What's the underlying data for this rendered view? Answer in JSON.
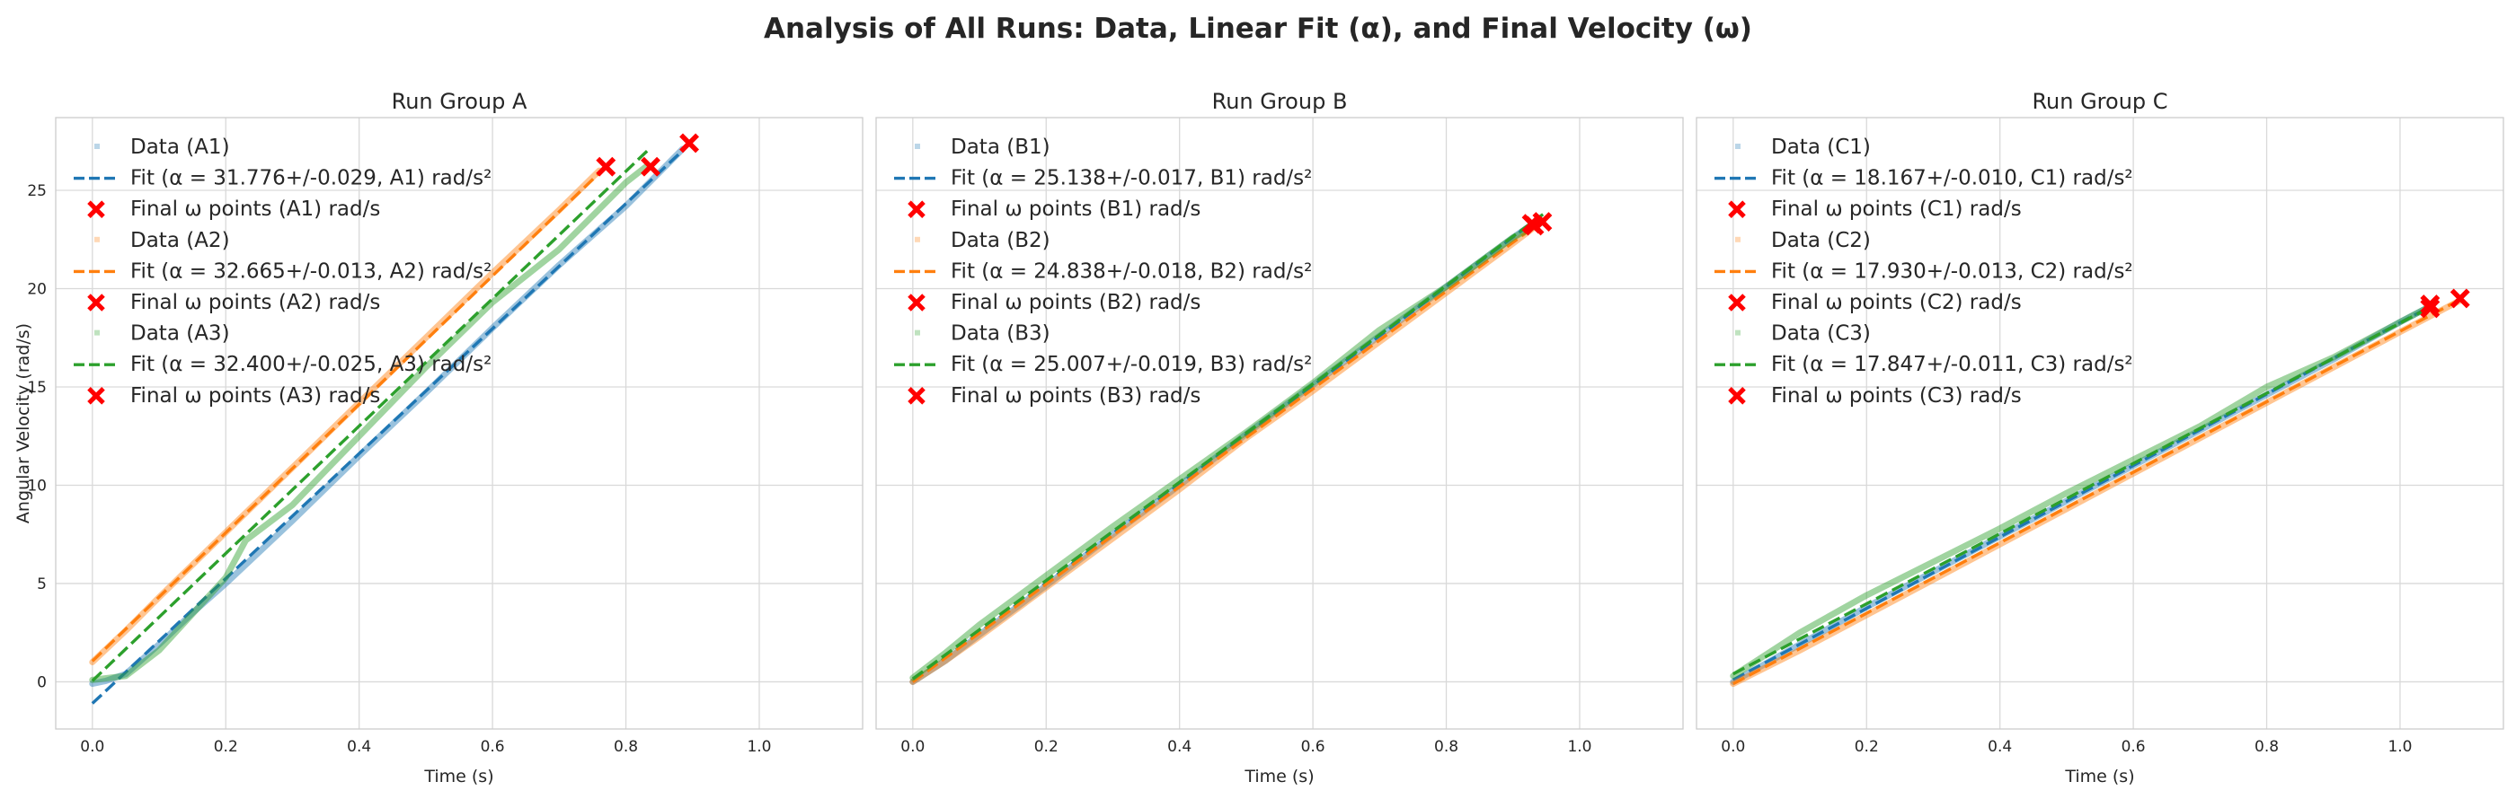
{
  "figure_title": "Analysis of All Runs: Data, Linear Fit (α), and Final Velocity (ω)",
  "colors": {
    "blue": "#1f77b4",
    "orange": "#ff7f0e",
    "green": "#2ca02c",
    "marker": "#ff0000",
    "grid": "#d9d9d9",
    "frame": "#cccccc"
  },
  "chart_data": [
    {
      "type": "line",
      "title": "Run Group A",
      "xlabel": "Time (s)",
      "ylabel": "Angular Velocity (rad/s)",
      "xlim": [
        -0.055,
        1.155
      ],
      "ylim": [
        -2.4,
        28.7
      ],
      "xticks": [
        "0.0",
        "0.2",
        "0.4",
        "0.6",
        "0.8",
        "1.0"
      ],
      "yticks": [
        "0",
        "5",
        "10",
        "15",
        "20",
        "25"
      ],
      "grid": true,
      "legend_position": "top-left",
      "series": [
        {
          "run": "A1",
          "color": "#1f77b4",
          "data_label": "Data (A1)",
          "fit_label": "Fit (α = 31.776+/-0.029, A1) rad/s²",
          "final_label": "Final ω points (A1) rad/s",
          "data_x": [
            0.0,
            0.02,
            0.05,
            0.1,
            0.15,
            0.2,
            0.3,
            0.4,
            0.5,
            0.6,
            0.7,
            0.8,
            0.85,
            0.885
          ],
          "data_y": [
            -0.1,
            0.05,
            0.4,
            1.9,
            3.5,
            5.0,
            8.2,
            11.5,
            14.7,
            18.0,
            21.2,
            24.2,
            25.9,
            27.1
          ],
          "fit": {
            "slope": 31.776,
            "intercept": -1.1,
            "x_range": [
              0.0,
              0.885
            ]
          },
          "final": [
            [
              0.895,
              27.4
            ]
          ]
        },
        {
          "run": "A2",
          "color": "#ff7f0e",
          "data_label": "Data (A2)",
          "fit_label": "Fit (α = 32.665+/-0.013, A2) rad/s²",
          "final_label": "Final ω points (A2) rad/s",
          "data_x": [
            0.0,
            0.05,
            0.1,
            0.2,
            0.3,
            0.4,
            0.5,
            0.6,
            0.7,
            0.76
          ],
          "data_y": [
            1.0,
            2.6,
            4.3,
            7.6,
            10.9,
            14.2,
            17.5,
            20.8,
            24.0,
            26.0
          ],
          "fit": {
            "slope": 32.665,
            "intercept": 1.05,
            "x_range": [
              0.0,
              0.765
            ]
          },
          "final": [
            [
              0.77,
              26.2
            ]
          ]
        },
        {
          "run": "A3",
          "color": "#2ca02c",
          "data_label": "Data (A3)",
          "fit_label": "Fit (α = 32.400+/-0.025, A3) rad/s²",
          "final_label": "Final ω points (A3) rad/s",
          "data_x": [
            0.0,
            0.05,
            0.1,
            0.2,
            0.23,
            0.3,
            0.4,
            0.5,
            0.6,
            0.7,
            0.8,
            0.83
          ],
          "data_y": [
            0.1,
            0.3,
            1.6,
            5.3,
            7.2,
            9.0,
            12.5,
            16.0,
            19.3,
            22.0,
            25.4,
            26.2
          ],
          "fit": {
            "slope": 32.4,
            "intercept": 0.05,
            "x_range": [
              0.0,
              0.835
            ]
          },
          "final": [
            [
              0.837,
              26.2
            ]
          ]
        }
      ]
    },
    {
      "type": "line",
      "title": "Run Group B",
      "xlabel": "Time (s)",
      "ylabel": "",
      "xlim": [
        -0.055,
        1.155
      ],
      "ylim": [
        -2.4,
        28.7
      ],
      "xticks": [
        "0.0",
        "0.2",
        "0.4",
        "0.6",
        "0.8",
        "1.0"
      ],
      "yticks": [],
      "grid": true,
      "legend_position": "top-left",
      "series": [
        {
          "run": "B1",
          "color": "#1f77b4",
          "data_label": "Data (B1)",
          "fit_label": "Fit (α = 25.138+/-0.017, B1) rad/s²",
          "final_label": "Final ω points (B1) rad/s",
          "data_x": [
            0.0,
            0.05,
            0.1,
            0.2,
            0.3,
            0.4,
            0.5,
            0.6,
            0.7,
            0.8,
            0.9,
            0.93
          ],
          "data_y": [
            0.0,
            1.1,
            2.4,
            4.9,
            7.5,
            10.0,
            12.6,
            15.1,
            17.6,
            20.1,
            22.6,
            23.3
          ],
          "fit": {
            "slope": 25.138,
            "intercept": 0.0,
            "x_range": [
              0.0,
              0.93
            ]
          },
          "final": [
            [
              0.928,
              23.3
            ]
          ]
        },
        {
          "run": "B2",
          "color": "#ff7f0e",
          "data_label": "Data (B2)",
          "fit_label": "Fit (α = 24.838+/-0.018, B2) rad/s²",
          "final_label": "Final ω points (B2) rad/s",
          "data_x": [
            0.0,
            0.05,
            0.1,
            0.2,
            0.3,
            0.4,
            0.5,
            0.6,
            0.7,
            0.8,
            0.9,
            0.935
          ],
          "data_y": [
            0.0,
            1.1,
            2.3,
            4.8,
            7.3,
            9.8,
            12.4,
            14.8,
            17.3,
            19.8,
            22.3,
            23.2
          ],
          "fit": {
            "slope": 24.838,
            "intercept": 0.0,
            "x_range": [
              0.0,
              0.935
            ]
          },
          "final": [
            [
              0.932,
              23.2
            ]
          ]
        },
        {
          "run": "B3",
          "color": "#2ca02c",
          "data_label": "Data (B3)",
          "fit_label": "Fit (α = 25.007+/-0.019, B3) rad/s²",
          "final_label": "Final ω points (B3) rad/s",
          "data_x": [
            0.0,
            0.05,
            0.1,
            0.2,
            0.3,
            0.4,
            0.5,
            0.6,
            0.7,
            0.8,
            0.9,
            0.945
          ],
          "data_y": [
            0.2,
            1.5,
            2.9,
            5.4,
            7.9,
            10.3,
            12.7,
            15.2,
            17.9,
            20.1,
            22.6,
            23.4
          ],
          "fit": {
            "slope": 25.007,
            "intercept": 0.15,
            "x_range": [
              0.0,
              0.945
            ]
          },
          "final": [
            [
              0.944,
              23.4
            ]
          ]
        }
      ]
    },
    {
      "type": "line",
      "title": "Run Group C",
      "xlabel": "Time (s)",
      "ylabel": "",
      "xlim": [
        -0.055,
        1.155
      ],
      "ylim": [
        -2.4,
        28.7
      ],
      "xticks": [
        "0.0",
        "0.2",
        "0.4",
        "0.6",
        "0.8",
        "1.0"
      ],
      "yticks": [],
      "grid": true,
      "legend_position": "top-left",
      "series": [
        {
          "run": "C1",
          "color": "#1f77b4",
          "data_label": "Data (C1)",
          "fit_label": "Fit (α = 18.167+/-0.010, C1) rad/s²",
          "final_label": "Final ω points (C1) rad/s",
          "data_x": [
            0.0,
            0.1,
            0.2,
            0.3,
            0.4,
            0.5,
            0.6,
            0.7,
            0.8,
            0.9,
            1.0,
            1.045
          ],
          "data_y": [
            0.0,
            1.9,
            3.8,
            5.6,
            7.4,
            9.2,
            11.0,
            12.8,
            14.6,
            16.4,
            18.3,
            19.1
          ],
          "fit": {
            "slope": 18.167,
            "intercept": 0.1,
            "x_range": [
              0.0,
              1.045
            ]
          },
          "final": [
            [
              1.045,
              19.2
            ]
          ]
        },
        {
          "run": "C2",
          "color": "#ff7f0e",
          "data_label": "Data (C2)",
          "fit_label": "Fit (α = 17.930+/-0.013, C2) rad/s²",
          "final_label": "Final ω points (C2) rad/s",
          "data_x": [
            0.0,
            0.1,
            0.2,
            0.3,
            0.4,
            0.5,
            0.6,
            0.7,
            0.8,
            0.9,
            1.0,
            1.09
          ],
          "data_y": [
            -0.1,
            1.6,
            3.4,
            5.2,
            7.0,
            8.8,
            10.6,
            12.4,
            14.2,
            16.0,
            17.8,
            19.4
          ],
          "fit": {
            "slope": 17.93,
            "intercept": -0.1,
            "x_range": [
              0.0,
              1.09
            ]
          },
          "final": [
            [
              1.09,
              19.5
            ]
          ]
        },
        {
          "run": "C3",
          "color": "#2ca02c",
          "data_label": "Data (C3)",
          "fit_label": "Fit (α = 17.847+/-0.011, C3) rad/s²",
          "final_label": "Final ω points (C3) rad/s",
          "data_x": [
            0.0,
            0.1,
            0.2,
            0.3,
            0.4,
            0.5,
            0.6,
            0.7,
            0.8,
            0.9,
            1.0,
            1.045
          ],
          "data_y": [
            0.3,
            2.5,
            4.4,
            6.1,
            7.8,
            9.6,
            11.3,
            13.0,
            15.0,
            16.5,
            18.3,
            19.1
          ],
          "fit": {
            "slope": 17.847,
            "intercept": 0.4,
            "x_range": [
              0.0,
              1.045
            ]
          },
          "final": [
            [
              1.045,
              19.0
            ]
          ]
        }
      ]
    }
  ]
}
